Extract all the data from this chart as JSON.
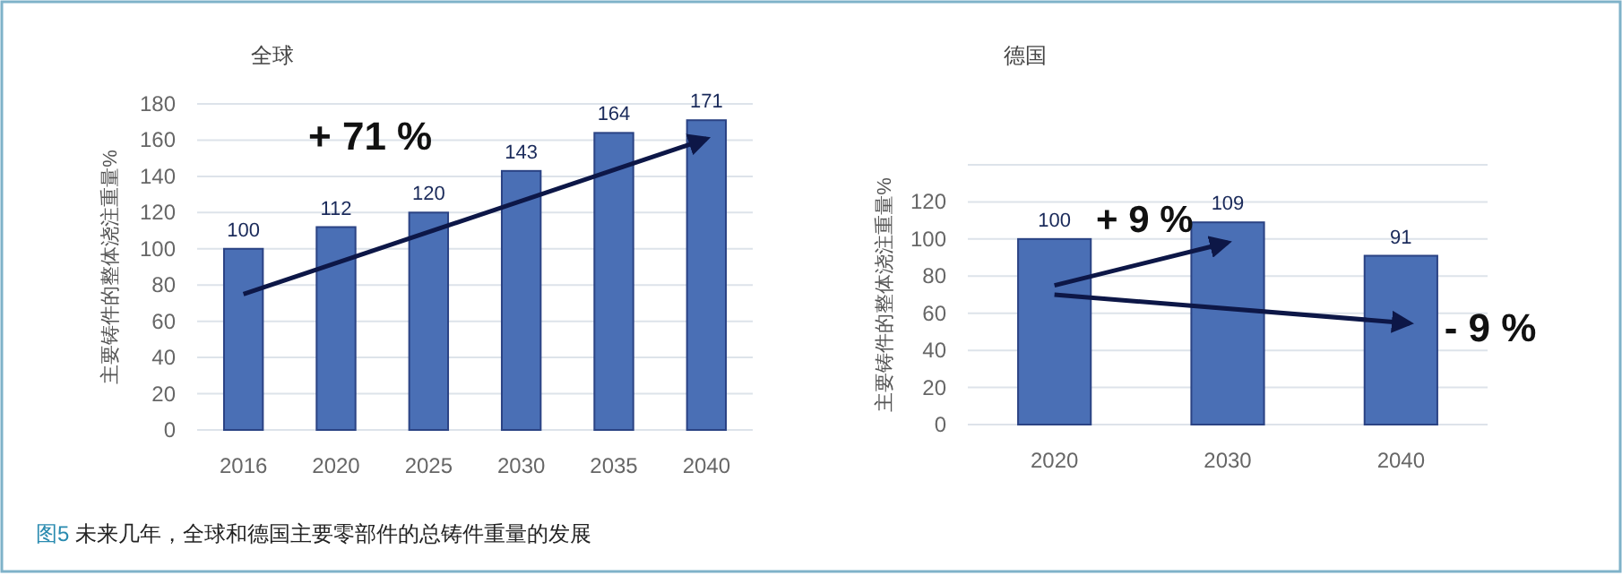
{
  "chart_data": [
    {
      "type": "bar",
      "title": "全球",
      "ylabel": "主要铸件的整体浇注重量%",
      "categories": [
        "2016",
        "2020",
        "2025",
        "2030",
        "2035",
        "2040"
      ],
      "values": [
        100,
        112,
        120,
        143,
        164,
        171
      ],
      "color": "#4a6fb5",
      "ylim": [
        0,
        180
      ],
      "yticks": [
        0,
        20,
        40,
        60,
        80,
        100,
        120,
        140,
        160,
        180
      ],
      "grid": "y",
      "data_labels": true,
      "annotations": [
        "+ 71 %",
        "图5 未来几年，全球和德国主要零部件的总铸件重量的发展"
      ]
    },
    {
      "type": "bar",
      "title": "德国",
      "ylabel": "主要铸件的整体浇注重量%",
      "categories": [
        "2020",
        "2030",
        "2040"
      ],
      "values": [
        100,
        109,
        91
      ],
      "color": "#4a6fb5",
      "ylim": [
        0,
        140
      ],
      "yticks": [
        0,
        20,
        40,
        60,
        80,
        100,
        120,
        {
          "value": 140,
          "label": null
        }
      ],
      "grid": "y",
      "data_labels": true,
      "annotations": [
        "+ 9 %",
        "- 9 %"
      ]
    }
  ]
}
